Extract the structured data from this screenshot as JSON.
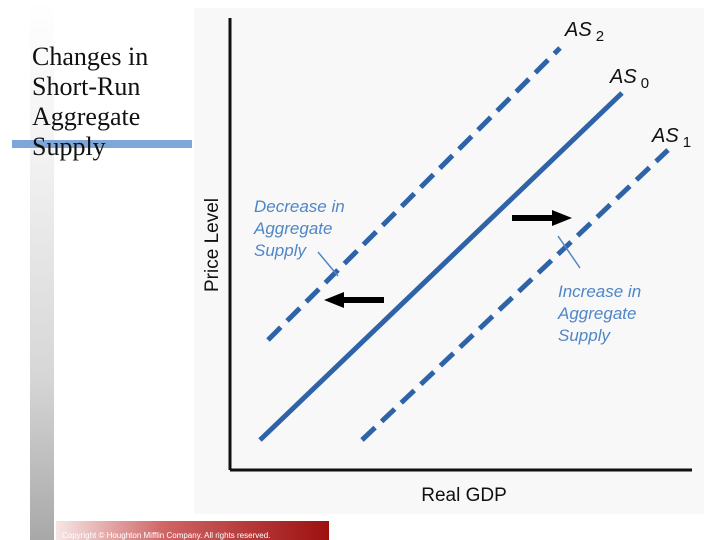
{
  "slide": {
    "title_lines": [
      "Changes in",
      "Short-Run",
      "Aggregate",
      "Supply"
    ],
    "copyright": "Copyright © Houghton Mifflin Company. All rights reserved."
  },
  "diagram": {
    "y_axis_label": "Price Level",
    "x_axis_label": "Real GDP",
    "curves": [
      {
        "name": "AS",
        "subscript": "2",
        "style": "dashed",
        "shift": "left"
      },
      {
        "name": "AS",
        "subscript": "0",
        "style": "solid",
        "shift": "none"
      },
      {
        "name": "AS",
        "subscript": "1",
        "style": "dashed",
        "shift": "right"
      }
    ],
    "annotations": {
      "decrease": [
        "Decrease in",
        "Aggregate",
        "Supply"
      ],
      "increase": [
        "Increase in",
        "Aggregate",
        "Supply"
      ]
    },
    "colors": {
      "curve": "#2f63a8",
      "annotation_text": "#4f86c6",
      "axis": "#111111",
      "arrow": "#000000"
    }
  }
}
